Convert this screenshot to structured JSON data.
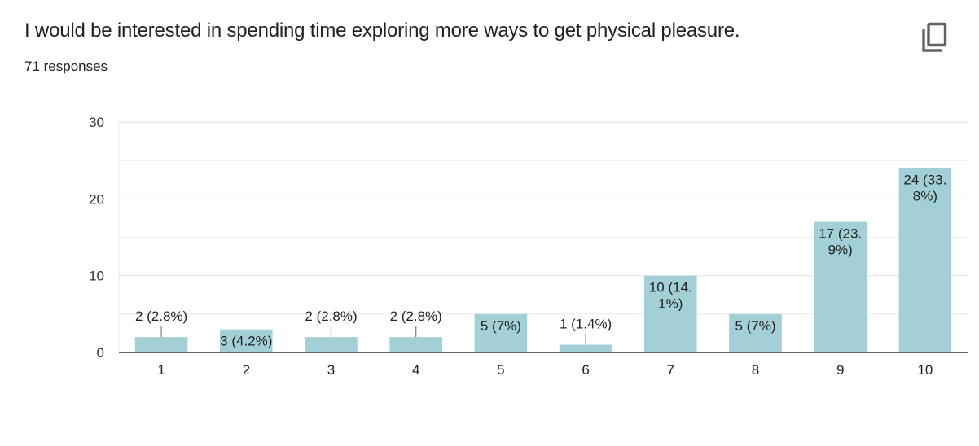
{
  "header": {
    "title": "I would be interested in spending time exploring more ways to get physical pleasure.",
    "responses": "71 responses"
  },
  "icons": {
    "copy": "copy-icon"
  },
  "colors": {
    "bar": "#a3cfd6",
    "grid": "#e8e8e8",
    "axis": "#333333",
    "leader": "#888888"
  },
  "chart_data": {
    "type": "bar",
    "categories": [
      "1",
      "2",
      "3",
      "4",
      "5",
      "6",
      "7",
      "8",
      "9",
      "10"
    ],
    "values": [
      2,
      3,
      2,
      2,
      5,
      1,
      10,
      5,
      17,
      24
    ],
    "data_labels": [
      [
        "2 (2.8%)"
      ],
      [
        "3 (4.2%)"
      ],
      [
        "2 (2.8%)"
      ],
      [
        "2 (2.8%)"
      ],
      [
        "5 (7%)"
      ],
      [
        "1 (1.4%)"
      ],
      [
        "10 (14.",
        "1%)"
      ],
      [
        "5 (7%)"
      ],
      [
        "17 (23.",
        "9%)"
      ],
      [
        "24 (33.",
        "8%)"
      ]
    ],
    "ylim": [
      0,
      30
    ],
    "yticks": [
      0,
      10,
      20,
      30
    ],
    "grid": true,
    "xlabel": "",
    "ylabel": ""
  }
}
